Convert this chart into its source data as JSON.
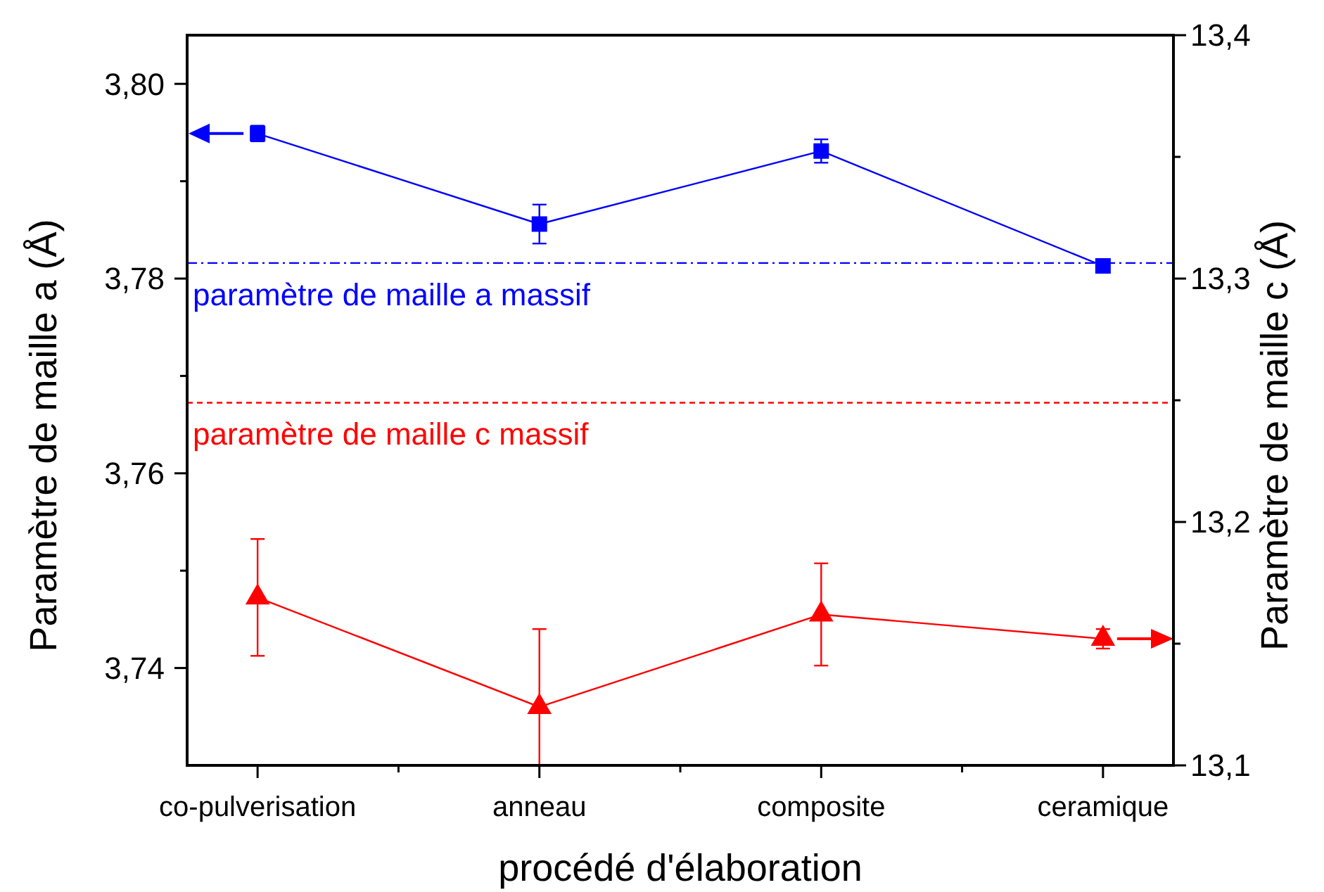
{
  "chart_data": {
    "type": "line",
    "categories": [
      "co-pulverisation",
      "anneau",
      "composite",
      "ceramique"
    ],
    "xlabel": "procédé d'élaboration",
    "ylabel": "Paramètre de maille a (Å)",
    "y2label": "Paramètre de maille c (Å)",
    "ylim": [
      3.73,
      3.805
    ],
    "yticks": [
      {
        "value": 3.74,
        "label": "3,74"
      },
      {
        "value": 3.75,
        "label": null
      },
      {
        "value": 3.76,
        "label": "3,76"
      },
      {
        "value": 3.77,
        "label": null
      },
      {
        "value": 3.78,
        "label": "3,78"
      },
      {
        "value": 3.79,
        "label": null
      },
      {
        "value": 3.8,
        "label": "3,80"
      }
    ],
    "y2lim": [
      13.1,
      13.4
    ],
    "y2ticks": [
      {
        "value": 13.1,
        "label": "13,1"
      },
      {
        "value": 13.15,
        "label": null
      },
      {
        "value": 13.2,
        "label": "13,2"
      },
      {
        "value": 13.25,
        "label": null
      },
      {
        "value": 13.3,
        "label": "13,3"
      },
      {
        "value": 13.35,
        "label": null
      },
      {
        "value": 13.4,
        "label": "13,4"
      }
    ],
    "series": [
      {
        "color": "#0000ff",
        "marker": "square",
        "values": [
          3.7949,
          3.7856,
          3.7931,
          3.7813
        ],
        "errors": [
          0.0008,
          0.002,
          0.0012,
          null
        ]
      },
      {
        "color": "#ff0000",
        "marker": "triangle",
        "axis": "y2",
        "values": [
          13.169,
          13.124,
          13.162,
          13.152
        ],
        "errors": [
          0.024,
          [
            13.1,
            13.156
          ],
          0.021,
          0.004
        ]
      }
    ],
    "ref_lines": [
      {
        "axis": "y",
        "value": 3.7816,
        "label": "paramètre de maille a massif",
        "color": "#0000ff",
        "line_style": "dashdot"
      },
      {
        "axis": "y2",
        "value": 13.249,
        "label": "paramètre de maille c massif",
        "color": "#ff0000",
        "line_style": "dashed"
      }
    ]
  }
}
